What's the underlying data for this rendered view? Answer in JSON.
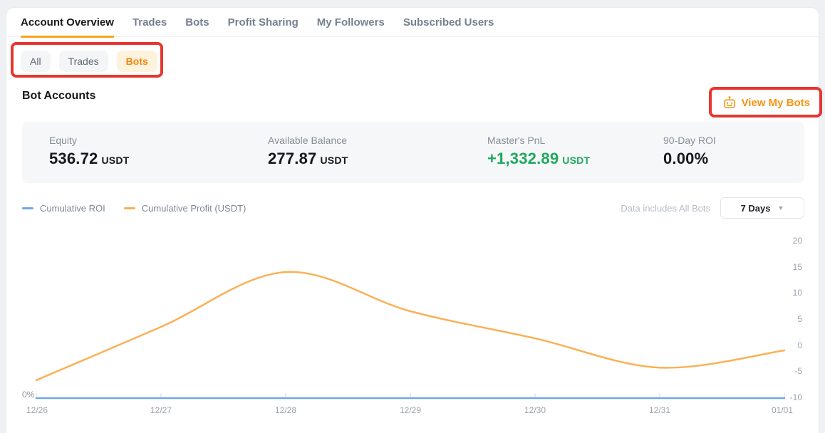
{
  "tabs": {
    "items": [
      {
        "label": "Account Overview",
        "active": true
      },
      {
        "label": "Trades",
        "active": false
      },
      {
        "label": "Bots",
        "active": false
      },
      {
        "label": "Profit Sharing",
        "active": false
      },
      {
        "label": "My Followers",
        "active": false
      },
      {
        "label": "Subscribed Users",
        "active": false
      }
    ]
  },
  "filter_pills": {
    "items": [
      {
        "label": "All",
        "active": false
      },
      {
        "label": "Trades",
        "active": false
      },
      {
        "label": "Bots",
        "active": true
      }
    ]
  },
  "section": {
    "title": "Bot Accounts",
    "view_my_bots_label": "View My Bots"
  },
  "stats": {
    "items": [
      {
        "label": "Equity",
        "value": "536.72",
        "unit": "USDT"
      },
      {
        "label": "Available Balance",
        "value": "277.87",
        "unit": "USDT"
      },
      {
        "label": "Master's PnL",
        "value": "+1,332.89",
        "unit": "USDT"
      },
      {
        "label": "90-Day ROI",
        "value": "0.00%",
        "unit": ""
      }
    ]
  },
  "legend": {
    "items": [
      {
        "label": "Cumulative ROI",
        "color": "#6FA8E8"
      },
      {
        "label": "Cumulative Profit (USDT)",
        "color": "#F9B155"
      }
    ]
  },
  "chart_controls": {
    "note": "Data includes All Bots",
    "range_selected": "7 Days"
  },
  "chart_data": {
    "type": "line",
    "title": "",
    "x": [
      "12/26",
      "12/27",
      "12/28",
      "12/29",
      "12/30",
      "12/31",
      "01/01"
    ],
    "series": [
      {
        "name": "Cumulative ROI",
        "axis": "left",
        "unit": "%",
        "color": "#6FA8E8",
        "values": [
          0,
          0,
          0,
          0,
          0,
          0,
          0
        ]
      },
      {
        "name": "Cumulative Profit (USDT)",
        "axis": "right",
        "unit": "USDT",
        "color": "#F9B155",
        "values": [
          -6.7,
          3.5,
          14,
          6.5,
          1.3,
          -4.3,
          -1.0
        ]
      }
    ],
    "right_axis": {
      "min": -10,
      "max": 20,
      "ticks": [
        20,
        15,
        10,
        5,
        0,
        -5,
        -10
      ]
    },
    "left_axis": {
      "bottom_label": "0%"
    },
    "grid": false,
    "legend_position": "top-left",
    "smoothing": "spline"
  },
  "colors": {
    "accent_orange": "#F8930F",
    "tab_underline": "#F9A11B",
    "pnl_green": "#1EA95C",
    "annotation_red": "#E5372F",
    "roi_blue": "#6FA8E8",
    "profit_orange": "#F9B155",
    "stats_panel_bg": "#F6F7F9"
  }
}
